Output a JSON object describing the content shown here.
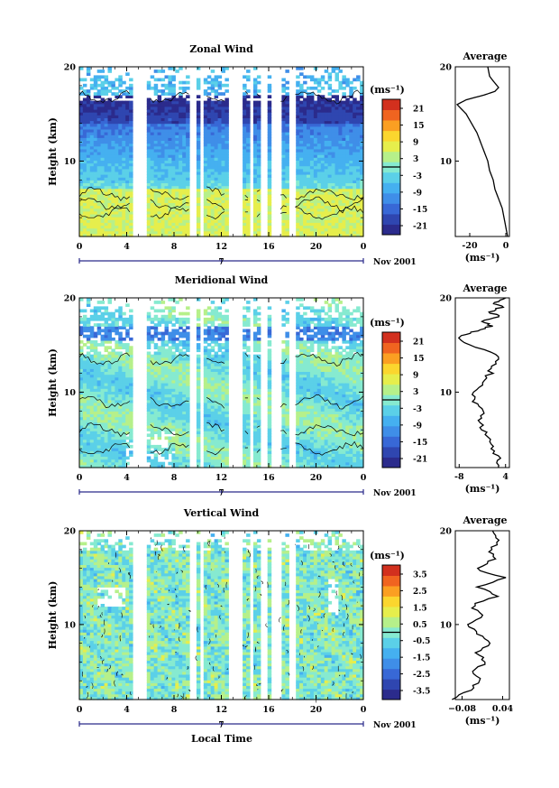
{
  "figure": {
    "xlabel": "Local Time",
    "colors": [
      "#2b2b8c",
      "#2f46b0",
      "#3868d6",
      "#3f8ee8",
      "#45b0f0",
      "#5bd0e8",
      "#86ead0",
      "#b6f08a",
      "#e6ee4c",
      "#fbd62e",
      "#fb9f22",
      "#f06420",
      "#d2301e"
    ]
  },
  "chart_data": [
    {
      "type": "heatmap",
      "title": "Zonal Wind",
      "ylabel": "Height (km)",
      "y_ticks": [
        "20",
        "10"
      ],
      "x_ticks": [
        "0",
        "4",
        "8",
        "12",
        "16",
        "20",
        "0"
      ],
      "ylim": [
        2,
        20
      ],
      "xlim": [
        0,
        24
      ],
      "date_marker": "7",
      "date_label": "Nov 2001",
      "colorbar": {
        "unit": "(ms⁻¹)",
        "ticks": [
          "21",
          "15",
          "9",
          "3",
          "-3",
          "-9",
          "-15",
          "-21"
        ],
        "range": [
          -24,
          24
        ]
      },
      "profile": {
        "title": "Average",
        "xlabel": "(ms⁻¹)",
        "x_ticks": [
          "-20",
          "0"
        ],
        "xlim": [
          -28,
          2
        ],
        "y_ticks": [
          "20",
          "10"
        ],
        "points": [
          [
            1,
            2
          ],
          [
            0,
            3
          ],
          [
            -1,
            4
          ],
          [
            -2,
            5
          ],
          [
            -4,
            6
          ],
          [
            -6,
            7
          ],
          [
            -7,
            8
          ],
          [
            -9,
            9
          ],
          [
            -10,
            10
          ],
          [
            -12,
            11
          ],
          [
            -14,
            12
          ],
          [
            -16,
            13
          ],
          [
            -19,
            14
          ],
          [
            -22,
            15
          ],
          [
            -27,
            16
          ],
          [
            -22,
            16.5
          ],
          [
            -12,
            17
          ],
          [
            -6,
            17.4
          ],
          [
            -4,
            17.8
          ],
          [
            -7,
            18.5
          ],
          [
            -9,
            19
          ],
          [
            -10,
            20
          ]
        ]
      }
    },
    {
      "type": "heatmap",
      "title": "Meridional Wind",
      "ylabel": "Height (km)",
      "y_ticks": [
        "20",
        "10"
      ],
      "x_ticks": [
        "0",
        "4",
        "8",
        "12",
        "16",
        "20",
        "0"
      ],
      "ylim": [
        2,
        20
      ],
      "xlim": [
        0,
        24
      ],
      "date_marker": "7",
      "date_label": "Nov 2001",
      "colorbar": {
        "unit": "(ms⁻¹)",
        "ticks": [
          "21",
          "15",
          "9",
          "3",
          "-3",
          "-9",
          "-15",
          "-21"
        ],
        "range": [
          -24,
          24
        ]
      },
      "profile": {
        "title": "Average",
        "xlabel": "(ms⁻¹)",
        "x_ticks": [
          "-8",
          "4"
        ],
        "xlim": [
          -9,
          5
        ],
        "y_ticks": [
          "20",
          "10"
        ],
        "points": [
          [
            3,
            2
          ],
          [
            2,
            3
          ],
          [
            1,
            4
          ],
          [
            0,
            5
          ],
          [
            -2,
            6
          ],
          [
            -3,
            7
          ],
          [
            -2,
            8
          ],
          [
            -4,
            9
          ],
          [
            -4,
            10
          ],
          [
            -2,
            11
          ],
          [
            0,
            12
          ],
          [
            1,
            13
          ],
          [
            2,
            14
          ],
          [
            -6,
            15
          ],
          [
            -8,
            16
          ],
          [
            -3,
            16.5
          ],
          [
            0,
            17
          ],
          [
            -2,
            17.5
          ],
          [
            2,
            18
          ],
          [
            0,
            18.5
          ],
          [
            3,
            19
          ],
          [
            1,
            19.5
          ],
          [
            4,
            20
          ]
        ]
      }
    },
    {
      "type": "heatmap",
      "title": "Vertical Wind",
      "ylabel": "Height (km)",
      "y_ticks": [
        "20",
        "10"
      ],
      "x_ticks": [
        "0",
        "4",
        "8",
        "12",
        "16",
        "20",
        "0"
      ],
      "ylim": [
        2,
        20
      ],
      "xlim": [
        0,
        24
      ],
      "date_marker": "7",
      "date_label": "Nov 2001",
      "colorbar": {
        "unit": "(ms⁻¹)",
        "ticks": [
          "3.5",
          "2.5",
          "1.5",
          "0.5",
          "-0.5",
          "-1.5",
          "-2.5",
          "-3.5"
        ],
        "range": [
          -4,
          4
        ]
      },
      "profile": {
        "title": "Average",
        "xlabel": "(ms⁻¹)",
        "x_ticks": [
          "−0.08",
          "0.04"
        ],
        "xlim": [
          -0.1,
          0.06
        ],
        "y_ticks": [
          "20",
          "10"
        ],
        "points": [
          [
            -0.1,
            2
          ],
          [
            -0.06,
            3
          ],
          [
            -0.02,
            4
          ],
          [
            -0.05,
            5
          ],
          [
            -0.01,
            6
          ],
          [
            -0.04,
            7
          ],
          [
            0.0,
            8
          ],
          [
            -0.03,
            9
          ],
          [
            -0.06,
            10
          ],
          [
            -0.02,
            11
          ],
          [
            -0.05,
            12
          ],
          [
            0.02,
            13
          ],
          [
            -0.03,
            14
          ],
          [
            0.04,
            15
          ],
          [
            -0.04,
            16
          ],
          [
            0.02,
            17
          ],
          [
            0.0,
            18
          ],
          [
            0.03,
            19
          ],
          [
            0.01,
            20
          ]
        ]
      }
    }
  ]
}
